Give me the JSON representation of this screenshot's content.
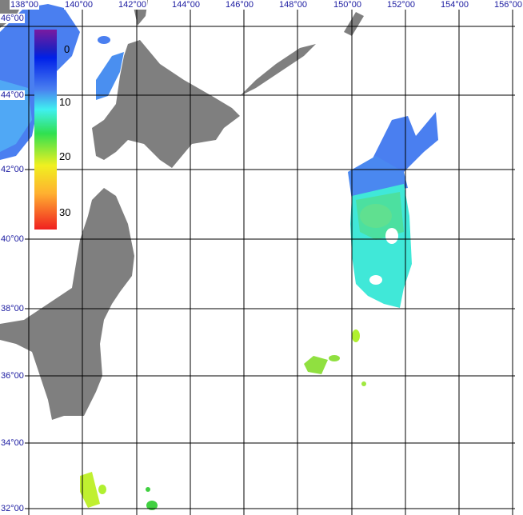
{
  "map": {
    "longitude_labels": [
      "138°00",
      "140°00",
      "142°00",
      "144°00",
      "146°00",
      "148°00",
      "150°00",
      "152°00",
      "154°00",
      "156°00"
    ],
    "latitude_labels": [
      "46°00",
      "44°00",
      "42°00",
      "40°00",
      "38°00",
      "36°00",
      "34°00",
      "32°00"
    ],
    "land_color": "#7f7f7f",
    "grid_color": "#000000"
  },
  "colorbar": {
    "tick_labels": [
      "0",
      "10",
      "20",
      "30"
    ],
    "colors": [
      "#7a00a0",
      "#0020e0",
      "#4080ff",
      "#40f0f0",
      "#20e040",
      "#f0f020",
      "#ffb030",
      "#f02020"
    ]
  }
}
